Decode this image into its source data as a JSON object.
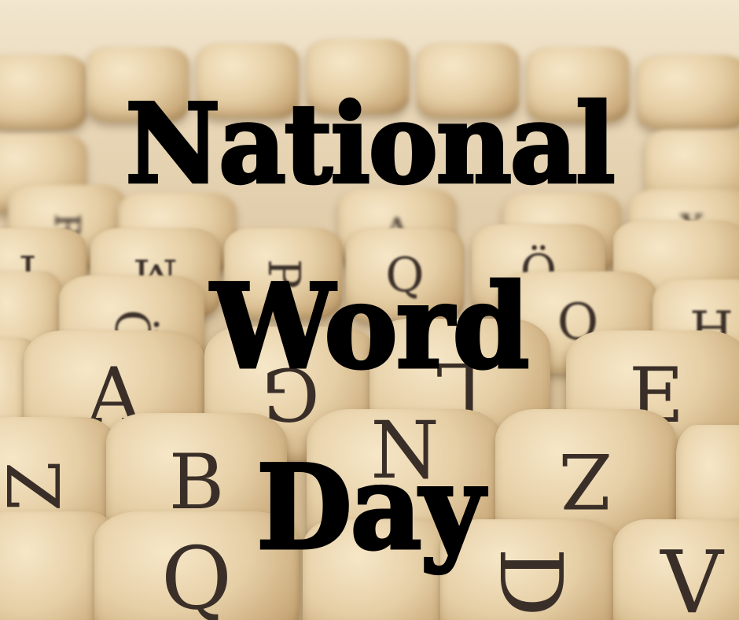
{
  "title": {
    "line1": "National",
    "line2": "Word",
    "line3": "Day"
  },
  "background": {
    "description_colors": {
      "wood_light": "#f6e7c8",
      "wood_mid": "#e6cfa6",
      "wood_dark": "#a8875a",
      "letter_ink": "#3a2f28"
    },
    "tile_letters_far": [
      "R",
      "J",
      "M",
      "P",
      "V",
      "A",
      "Ö",
      "X",
      "H"
    ],
    "tile_letters_mid": [
      "J",
      "M",
      "P",
      "Q",
      "Ö",
      "O",
      "H",
      "Ö"
    ],
    "tile_letters_near": [
      "A",
      "G",
      "L",
      "E",
      "Z",
      "B",
      "N",
      "Z",
      "Q",
      "D",
      "V"
    ]
  }
}
